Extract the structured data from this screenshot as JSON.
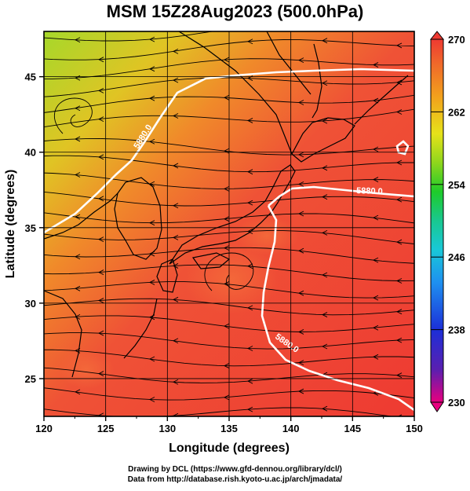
{
  "title": "MSM 15Z28Aug2023 (500.0hPa)",
  "x_axis": {
    "label": "Longitude (degrees)",
    "range": [
      120,
      150
    ],
    "ticks": [
      "120",
      "125",
      "130",
      "135",
      "140",
      "145",
      "150"
    ]
  },
  "y_axis": {
    "label": "Latitude  (degrees)",
    "range": [
      22.5,
      48
    ],
    "ticks": [
      "25",
      "30",
      "35",
      "40",
      "45"
    ]
  },
  "colorbar": {
    "range": [
      230,
      270
    ],
    "ticks": [
      "270",
      "262",
      "254",
      "246",
      "238",
      "230"
    ],
    "colors": [
      "#e8007f",
      "#5a1fb0",
      "#1c2fd8",
      "#1e90f0",
      "#19c8d8",
      "#19c890",
      "#1ecb2a",
      "#8fd61c",
      "#e6e21a",
      "#f2a21c",
      "#f06a2a",
      "#ee3a32"
    ]
  },
  "contours": [
    {
      "label": "5880.0"
    },
    {
      "label": "5880.0"
    },
    {
      "label": "5880.0"
    }
  ],
  "credits": {
    "line1": "Drawing by DCL (https://www.gfd-dennou.org/library/dcl/)",
    "line2": "Data from http://database.rish.kyoto-u.ac.jp/arch/jmadata/"
  }
}
